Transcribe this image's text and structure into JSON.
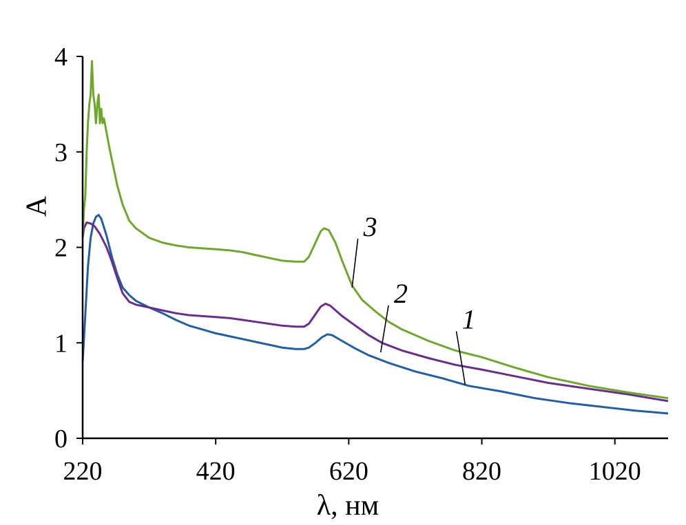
{
  "chart_data": {
    "type": "line",
    "xlabel": "λ, нм",
    "ylabel": "A",
    "xlim": [
      220,
      1100
    ],
    "ylim": [
      0,
      4
    ],
    "xticks": [
      220,
      420,
      620,
      820,
      1020
    ],
    "yticks": [
      0,
      1,
      2,
      3,
      4
    ],
    "grid": false,
    "series": [
      {
        "name": "1",
        "color": "#1f5fa8",
        "label_x": 790,
        "label_y": 1.15,
        "leader_end": [
          795,
          0.56
        ],
        "points": [
          [
            220,
            0.8
          ],
          [
            224,
            1.3
          ],
          [
            228,
            1.8
          ],
          [
            232,
            2.1
          ],
          [
            236,
            2.25
          ],
          [
            240,
            2.32
          ],
          [
            244,
            2.34
          ],
          [
            248,
            2.3
          ],
          [
            256,
            2.12
          ],
          [
            264,
            1.9
          ],
          [
            272,
            1.72
          ],
          [
            280,
            1.58
          ],
          [
            290,
            1.5
          ],
          [
            300,
            1.44
          ],
          [
            320,
            1.37
          ],
          [
            340,
            1.31
          ],
          [
            360,
            1.24
          ],
          [
            380,
            1.18
          ],
          [
            400,
            1.14
          ],
          [
            420,
            1.1
          ],
          [
            440,
            1.07
          ],
          [
            460,
            1.04
          ],
          [
            480,
            1.01
          ],
          [
            500,
            0.98
          ],
          [
            520,
            0.95
          ],
          [
            540,
            0.935
          ],
          [
            553,
            0.935
          ],
          [
            560,
            0.95
          ],
          [
            570,
            1.0
          ],
          [
            580,
            1.06
          ],
          [
            588,
            1.09
          ],
          [
            595,
            1.08
          ],
          [
            610,
            1.02
          ],
          [
            630,
            0.94
          ],
          [
            650,
            0.87
          ],
          [
            680,
            0.79
          ],
          [
            720,
            0.7
          ],
          [
            760,
            0.63
          ],
          [
            800,
            0.55
          ],
          [
            850,
            0.49
          ],
          [
            900,
            0.42
          ],
          [
            950,
            0.37
          ],
          [
            1000,
            0.33
          ],
          [
            1050,
            0.29
          ],
          [
            1100,
            0.26
          ]
        ]
      },
      {
        "name": "2",
        "color": "#6a2d8f",
        "label_x": 688,
        "label_y": 1.42,
        "leader_end": [
          668,
          0.9
        ],
        "points": [
          [
            220,
            2.1
          ],
          [
            222,
            2.2
          ],
          [
            226,
            2.26
          ],
          [
            232,
            2.25
          ],
          [
            238,
            2.22
          ],
          [
            246,
            2.14
          ],
          [
            256,
            2.0
          ],
          [
            264,
            1.85
          ],
          [
            272,
            1.68
          ],
          [
            280,
            1.52
          ],
          [
            290,
            1.43
          ],
          [
            300,
            1.4
          ],
          [
            320,
            1.37
          ],
          [
            340,
            1.34
          ],
          [
            360,
            1.31
          ],
          [
            380,
            1.29
          ],
          [
            400,
            1.28
          ],
          [
            420,
            1.27
          ],
          [
            440,
            1.26
          ],
          [
            460,
            1.24
          ],
          [
            480,
            1.22
          ],
          [
            500,
            1.2
          ],
          [
            520,
            1.18
          ],
          [
            540,
            1.17
          ],
          [
            553,
            1.17
          ],
          [
            560,
            1.2
          ],
          [
            570,
            1.3
          ],
          [
            578,
            1.38
          ],
          [
            585,
            1.41
          ],
          [
            592,
            1.39
          ],
          [
            610,
            1.28
          ],
          [
            630,
            1.18
          ],
          [
            650,
            1.08
          ],
          [
            670,
            1.0
          ],
          [
            700,
            0.92
          ],
          [
            740,
            0.84
          ],
          [
            780,
            0.77
          ],
          [
            820,
            0.72
          ],
          [
            870,
            0.65
          ],
          [
            920,
            0.58
          ],
          [
            980,
            0.52
          ],
          [
            1040,
            0.46
          ],
          [
            1100,
            0.39
          ]
        ]
      },
      {
        "name": "3",
        "color": "#6ea82a",
        "label_x": 642,
        "label_y": 2.12,
        "leader_end": [
          625,
          1.58
        ],
        "points": [
          [
            220,
            2.1
          ],
          [
            222,
            2.4
          ],
          [
            224,
            2.55
          ],
          [
            226,
            3.0
          ],
          [
            228,
            3.3
          ],
          [
            230,
            3.5
          ],
          [
            232,
            3.6
          ],
          [
            234,
            3.95
          ],
          [
            236,
            3.6
          ],
          [
            238,
            3.5
          ],
          [
            240,
            3.3
          ],
          [
            242,
            3.5
          ],
          [
            244,
            3.6
          ],
          [
            246,
            3.3
          ],
          [
            248,
            3.45
          ],
          [
            250,
            3.3
          ],
          [
            252,
            3.35
          ],
          [
            256,
            3.2
          ],
          [
            260,
            3.05
          ],
          [
            266,
            2.85
          ],
          [
            272,
            2.65
          ],
          [
            280,
            2.45
          ],
          [
            290,
            2.28
          ],
          [
            300,
            2.2
          ],
          [
            320,
            2.1
          ],
          [
            340,
            2.05
          ],
          [
            360,
            2.02
          ],
          [
            380,
            2.0
          ],
          [
            400,
            1.99
          ],
          [
            420,
            1.98
          ],
          [
            440,
            1.97
          ],
          [
            460,
            1.95
          ],
          [
            480,
            1.92
          ],
          [
            500,
            1.89
          ],
          [
            520,
            1.86
          ],
          [
            540,
            1.85
          ],
          [
            553,
            1.85
          ],
          [
            560,
            1.9
          ],
          [
            570,
            2.05
          ],
          [
            578,
            2.17
          ],
          [
            583,
            2.2
          ],
          [
            590,
            2.18
          ],
          [
            600,
            2.05
          ],
          [
            610,
            1.86
          ],
          [
            625,
            1.6
          ],
          [
            640,
            1.45
          ],
          [
            660,
            1.33
          ],
          [
            680,
            1.22
          ],
          [
            700,
            1.14
          ],
          [
            740,
            1.02
          ],
          [
            780,
            0.92
          ],
          [
            820,
            0.85
          ],
          [
            870,
            0.74
          ],
          [
            920,
            0.64
          ],
          [
            980,
            0.55
          ],
          [
            1040,
            0.48
          ],
          [
            1100,
            0.42
          ]
        ]
      }
    ]
  }
}
